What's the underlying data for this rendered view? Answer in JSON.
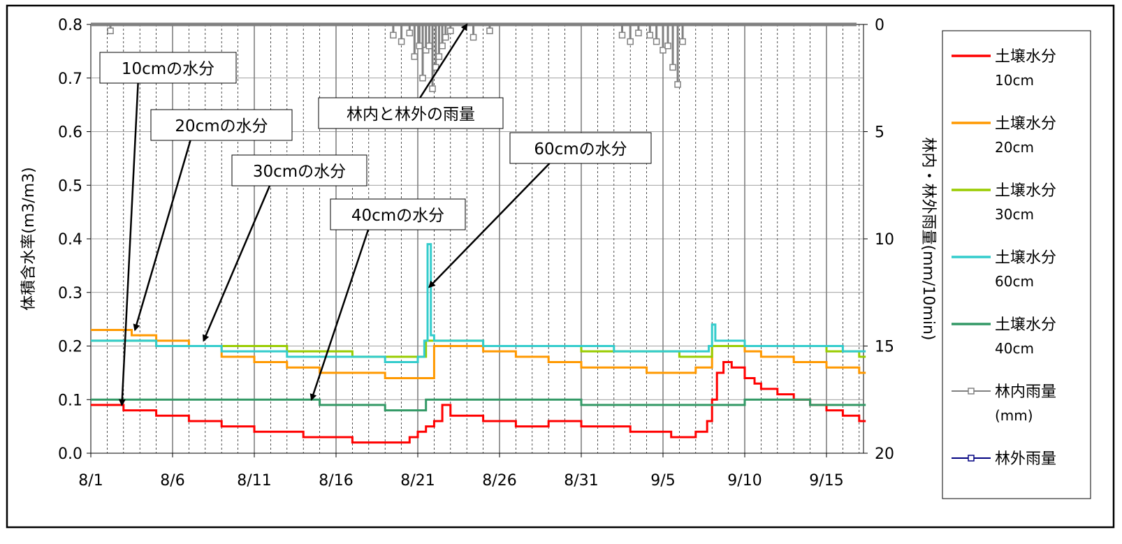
{
  "chart_data": {
    "type": "line",
    "x_axis": {
      "start_date": "8/1",
      "end_date": "9/16",
      "tick_labels": [
        "8/1",
        "8/6",
        "8/11",
        "8/16",
        "8/21",
        "8/26",
        "8/31",
        "9/5",
        "9/10",
        "9/15"
      ]
    },
    "y_left": {
      "label": "体積含水率(m3/m3)",
      "range": [
        0,
        0.8
      ],
      "tick_labels": [
        "0.0",
        "0.1",
        "0.2",
        "0.3",
        "0.4",
        "0.5",
        "0.6",
        "0.7",
        "0.8"
      ]
    },
    "y_right": {
      "label": "林内・林外雨量(mm/10min)",
      "range": [
        0,
        20
      ],
      "inverted": true,
      "tick_labels": [
        "0",
        "5",
        "10",
        "15",
        "20"
      ]
    },
    "grid": {
      "vertical": true,
      "horizontal": true
    },
    "legend": {
      "placement": "right",
      "entries": [
        {
          "line1": "土壌水分",
          "line2": "10cm",
          "color": "#ff0000",
          "marker": "line"
        },
        {
          "line1": "土壌水分",
          "line2": "20cm",
          "color": "#ff9900",
          "marker": "line"
        },
        {
          "line1": "土壌水分",
          "line2": "30cm",
          "color": "#99cc00",
          "marker": "line"
        },
        {
          "line1": "土壌水分",
          "line2": "60cm",
          "color": "#33cccc",
          "marker": "line"
        },
        {
          "line1": "土壌水分",
          "line2": "40cm",
          "color": "#339966",
          "marker": "line"
        },
        {
          "line1": "林内雨量",
          "line2": "(mm)",
          "color": "#808080",
          "marker": "square"
        },
        {
          "line1": "林外雨量",
          "line2": "",
          "color": "#000080",
          "marker": "square"
        }
      ]
    },
    "series": [
      {
        "name": "土壌水分 10cm",
        "color": "#ff0000",
        "x": [
          0,
          1.5,
          2,
          3,
          4,
          6,
          8,
          10,
          13,
          16,
          18.8,
          19.5,
          20,
          20.5,
          21,
          21.5,
          22,
          24,
          26,
          28,
          30,
          32,
          33,
          34.5,
          35.5,
          37,
          37.7,
          38,
          38.3,
          38.7,
          39.2,
          40,
          40.6,
          41,
          42,
          43,
          44,
          45,
          46,
          47,
          47.4
        ],
        "y": [
          0.09,
          0.09,
          0.08,
          0.08,
          0.07,
          0.06,
          0.05,
          0.04,
          0.03,
          0.02,
          0.02,
          0.03,
          0.04,
          0.05,
          0.06,
          0.09,
          0.07,
          0.06,
          0.05,
          0.06,
          0.05,
          0.05,
          0.04,
          0.04,
          0.03,
          0.04,
          0.06,
          0.1,
          0.15,
          0.17,
          0.16,
          0.14,
          0.13,
          0.12,
          0.11,
          0.1,
          0.09,
          0.08,
          0.07,
          0.06,
          0.06
        ]
      },
      {
        "name": "土壌水分 20cm",
        "color": "#ff9900",
        "x": [
          0,
          1.8,
          2.5,
          4,
          6,
          8,
          10,
          12,
          14,
          18,
          20,
          21,
          22.5,
          24,
          26,
          28,
          30,
          32,
          34,
          36,
          37,
          38,
          39,
          40,
          41,
          42,
          43,
          44,
          45,
          46,
          47,
          47.4
        ],
        "y": [
          0.23,
          0.23,
          0.22,
          0.21,
          0.2,
          0.18,
          0.17,
          0.16,
          0.15,
          0.14,
          0.14,
          0.2,
          0.2,
          0.19,
          0.18,
          0.17,
          0.16,
          0.16,
          0.15,
          0.15,
          0.16,
          0.2,
          0.2,
          0.19,
          0.18,
          0.18,
          0.17,
          0.17,
          0.16,
          0.16,
          0.15,
          0.15
        ]
      },
      {
        "name": "土壌水分 30cm",
        "color": "#99cc00",
        "x": [
          0,
          2.5,
          4,
          7,
          12,
          16,
          20,
          20.5,
          22.5,
          24,
          27,
          30,
          32,
          34,
          36,
          38,
          39,
          42,
          45,
          47,
          47.4
        ],
        "y": [
          0.21,
          0.21,
          0.2,
          0.2,
          0.19,
          0.18,
          0.18,
          0.21,
          0.21,
          0.2,
          0.2,
          0.19,
          0.19,
          0.19,
          0.18,
          0.2,
          0.2,
          0.2,
          0.19,
          0.18,
          0.18
        ]
      },
      {
        "name": "土壌水分 60cm",
        "color": "#33cccc",
        "x": [
          0,
          1,
          4,
          6,
          8,
          10,
          12,
          14,
          16,
          18,
          20,
          20.4,
          20.6,
          20.8,
          21,
          22,
          24,
          26,
          28,
          30,
          32,
          34,
          36,
          37.5,
          37.8,
          38,
          38.2,
          40,
          42,
          44,
          46,
          47,
          47.4
        ],
        "y": [
          0.21,
          0.21,
          0.2,
          0.2,
          0.19,
          0.19,
          0.18,
          0.18,
          0.18,
          0.17,
          0.18,
          0.21,
          0.39,
          0.22,
          0.21,
          0.21,
          0.2,
          0.2,
          0.2,
          0.2,
          0.19,
          0.19,
          0.19,
          0.19,
          0.2,
          0.24,
          0.21,
          0.2,
          0.2,
          0.2,
          0.19,
          0.19,
          0.19
        ]
      },
      {
        "name": "土壌水分 40cm",
        "color": "#339966",
        "x": [
          0,
          6,
          10,
          14,
          16.5,
          18,
          20,
          20.5,
          22,
          24,
          28,
          30,
          33,
          36,
          38,
          40,
          42,
          44,
          46,
          47.4
        ],
        "y": [
          0.1,
          0.1,
          0.1,
          0.09,
          0.09,
          0.08,
          0.08,
          0.1,
          0.1,
          0.1,
          0.1,
          0.09,
          0.09,
          0.09,
          0.09,
          0.1,
          0.1,
          0.09,
          0.09,
          0.09
        ]
      },
      {
        "name": "林内雨量 (mm)",
        "color": "#808080",
        "x": [
          1.2,
          18.5,
          19,
          19.5,
          19.8,
          20.1,
          20.3,
          20.5,
          20.7,
          20.9,
          21.1,
          21.3,
          21.5,
          21.7,
          22,
          23.4,
          24.4,
          32.5,
          33,
          33.5,
          34.2,
          34.6,
          35,
          35.3,
          35.6,
          35.9,
          36.2
        ],
        "y": [
          0.3,
          0.5,
          0.8,
          0.4,
          1.5,
          1,
          2.5,
          1.2,
          1,
          3,
          2,
          1.5,
          1,
          0.6,
          0.3,
          0.6,
          0.3,
          0.5,
          0.8,
          0.4,
          0.5,
          0.8,
          1.2,
          1,
          2,
          2.8,
          0.8
        ]
      },
      {
        "name": "林外雨量",
        "color": "#000080",
        "x": [],
        "y": []
      }
    ],
    "annotations": [
      {
        "text": "10cmの水分",
        "target": [
          1.9,
          0.09
        ]
      },
      {
        "text": "20cmの水分",
        "target": [
          2.7,
          0.23
        ]
      },
      {
        "text": "30cmの水分",
        "target": [
          6.9,
          0.21
        ]
      },
      {
        "text": "40cmの水分",
        "target": [
          13.5,
          0.1
        ]
      },
      {
        "text": "林内と林外の雨量",
        "target": [
          23.0,
          0.8
        ]
      },
      {
        "text": "60cmの水分",
        "target": [
          20.7,
          0.31
        ]
      }
    ]
  }
}
